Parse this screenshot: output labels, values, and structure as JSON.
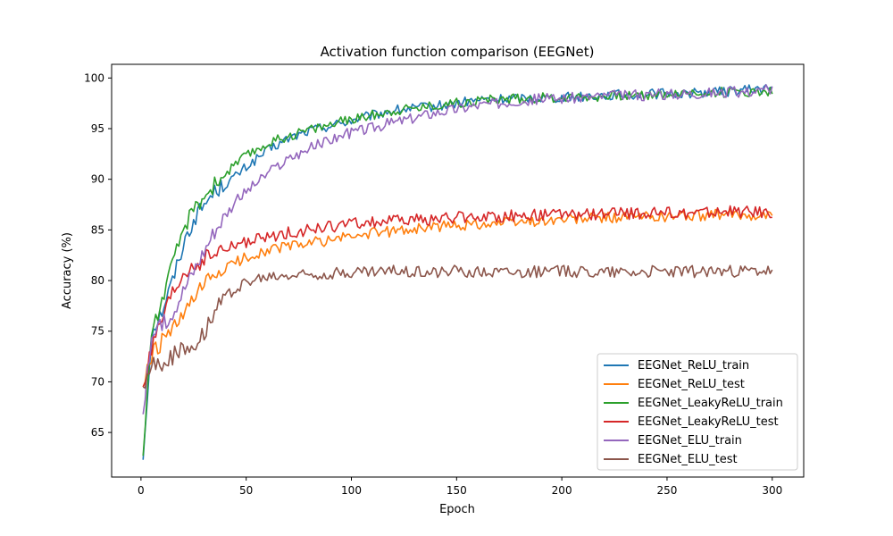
{
  "chart_data": {
    "type": "line",
    "title": "Activation function comparison (EEGNet)",
    "xlabel": "Epoch",
    "ylabel": "Accuracy (%)",
    "xlim": [
      -13.95,
      314.95
    ],
    "ylim": [
      60.6,
      101.35
    ],
    "xticks": [
      0,
      50,
      100,
      150,
      200,
      250,
      300
    ],
    "yticks": [
      65,
      70,
      75,
      80,
      85,
      90,
      95,
      100
    ],
    "grid": false,
    "legend_position": "lower right",
    "x": [
      1,
      5,
      10,
      15,
      20,
      25,
      30,
      35,
      40,
      45,
      50,
      60,
      70,
      80,
      90,
      100,
      120,
      140,
      160,
      180,
      200,
      220,
      240,
      260,
      280,
      300
    ],
    "series": [
      {
        "name": "EEGNet_ReLU_train",
        "color": "#1f77b4",
        "values": [
          62.3,
          74.8,
          77.0,
          80.0,
          83.5,
          86.0,
          87.5,
          88.8,
          89.5,
          90.3,
          91.2,
          92.8,
          94.0,
          94.8,
          95.3,
          95.8,
          96.8,
          97.2,
          97.8,
          98.0,
          98.1,
          98.3,
          98.4,
          98.5,
          98.7,
          99.0
        ],
        "noise": 0.5
      },
      {
        "name": "EEGNet_ReLU_test",
        "color": "#ff7f0e",
        "values": [
          69.5,
          72.5,
          74.0,
          75.0,
          76.5,
          78.0,
          79.5,
          80.5,
          81.2,
          81.8,
          82.3,
          83.0,
          83.4,
          83.7,
          84.0,
          84.4,
          84.9,
          85.3,
          85.6,
          85.8,
          86.0,
          86.2,
          86.3,
          86.4,
          86.5,
          86.5
        ],
        "noise": 0.55
      },
      {
        "name": "EEGNet_LeakyReLU_train",
        "color": "#2ca02c",
        "values": [
          62.7,
          75.0,
          78.0,
          81.5,
          85.0,
          87.0,
          88.3,
          89.5,
          90.5,
          91.5,
          92.3,
          93.5,
          94.3,
          94.9,
          95.4,
          95.9,
          96.8,
          97.3,
          97.8,
          98.0,
          98.1,
          98.2,
          98.3,
          98.5,
          98.6,
          98.7
        ],
        "noise": 0.5
      },
      {
        "name": "EEGNet_LeakyReLU_test",
        "color": "#d62728",
        "values": [
          69.5,
          73.0,
          76.0,
          78.5,
          80.5,
          81.5,
          82.0,
          82.6,
          83.0,
          83.5,
          83.8,
          84.2,
          84.7,
          85.0,
          85.3,
          85.6,
          85.9,
          86.1,
          86.3,
          86.4,
          86.5,
          86.6,
          86.6,
          86.7,
          86.8,
          86.8
        ],
        "noise": 0.6
      },
      {
        "name": "EEGNet_ELU_train",
        "color": "#9467bd",
        "values": [
          66.8,
          74.5,
          75.5,
          77.0,
          79.0,
          81.0,
          83.0,
          85.0,
          86.5,
          87.8,
          88.8,
          90.5,
          92.0,
          93.0,
          93.9,
          94.6,
          95.6,
          96.6,
          97.3,
          97.8,
          98.0,
          98.2,
          98.3,
          98.5,
          98.6,
          98.8
        ],
        "noise": 0.55
      },
      {
        "name": "EEGNet_ELU_test",
        "color": "#8c564b",
        "values": [
          69.5,
          71.5,
          72.0,
          72.5,
          73.0,
          73.8,
          75.0,
          77.0,
          78.3,
          79.3,
          79.8,
          80.3,
          80.5,
          80.6,
          80.7,
          80.8,
          80.9,
          80.9,
          80.9,
          80.9,
          80.9,
          80.9,
          80.9,
          80.9,
          80.9,
          80.9
        ],
        "noise": 0.6
      }
    ]
  }
}
